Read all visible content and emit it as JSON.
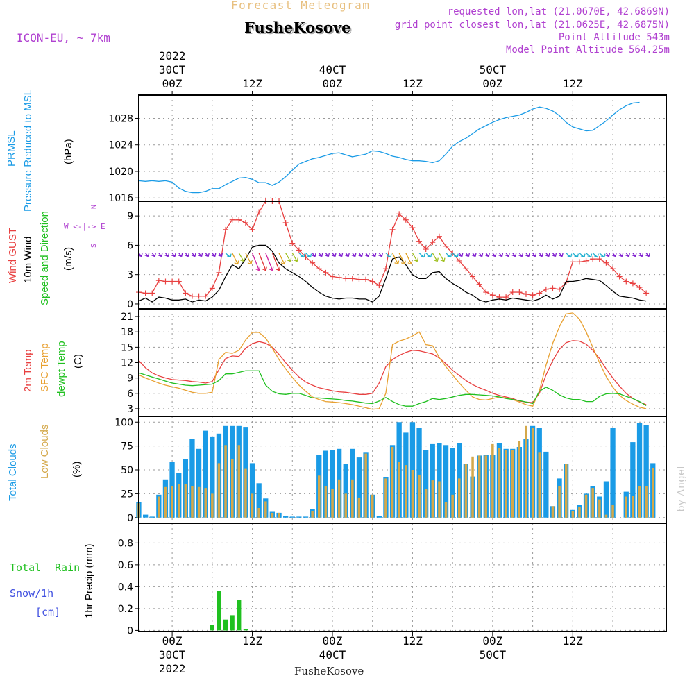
{
  "header": {
    "subtitle": "Forecast Meteogram",
    "title": "FusheKosove",
    "model": "ICON-EU, ~ 7km",
    "requested": "requested lon,lat (21.0670E, 42.6869N)",
    "closest": "grid point closest lon,lat (21.0625E, 42.6875N)",
    "point_alt": "Point Altitude 543m",
    "model_alt": "Model Point Altitude 564.25m",
    "footer": "FusheKosove",
    "watermark": "by Angel"
  },
  "time_axis": {
    "top_labels": [
      {
        "h": 0,
        "lines": [
          "2022",
          "30CT",
          "00Z"
        ]
      },
      {
        "h": 12,
        "lines": [
          "12Z"
        ]
      },
      {
        "h": 24,
        "lines": [
          "40CT",
          "00Z"
        ]
      },
      {
        "h": 36,
        "lines": [
          "12Z"
        ]
      },
      {
        "h": 48,
        "lines": [
          "50CT",
          "00Z"
        ]
      },
      {
        "h": 60,
        "lines": [
          "12Z"
        ]
      }
    ],
    "bottom_labels": [
      {
        "h": 0,
        "lines": [
          "00Z",
          "30CT",
          "2022"
        ]
      },
      {
        "h": 12,
        "lines": [
          "12Z"
        ]
      },
      {
        "h": 24,
        "lines": [
          "00Z",
          "40CT"
        ]
      },
      {
        "h": 36,
        "lines": [
          "12Z"
        ]
      },
      {
        "h": 48,
        "lines": [
          "00Z",
          "50CT"
        ]
      },
      {
        "h": 60,
        "lines": [
          "12Z"
        ]
      }
    ]
  },
  "panel_labels": {
    "p1": {
      "a": "PRMSL",
      "b": "Pressure Reduced to MSL",
      "unit": "(hPa)"
    },
    "p2": {
      "a": "Wind GUST",
      "b": "10m Wind",
      "c": "Speed and Direction",
      "unit": "(m/s)",
      "compass": [
        "N",
        "W <-|-> E",
        "S"
      ]
    },
    "p3": {
      "a": "2m Temp",
      "b": "SFC Temp",
      "c": "dewpt Temp",
      "unit": "(C)"
    },
    "p4": {
      "a": "Total Clouds",
      "b": "Low Clouds",
      "unit": "(%)"
    },
    "p5": {
      "a": "Total",
      "b": "Rain",
      "c": "Snow/1h",
      "d": "[cm]",
      "unit": "1hr Precip (mm)"
    }
  },
  "colors": {
    "pressure": "#1a9be6",
    "gust": "#e84040",
    "wind": "#000000",
    "t2m": "#e84040",
    "sfc": "#e8a030",
    "dew": "#20c020",
    "total_cloud": "#1a9be6",
    "low_cloud": "#d4a84a",
    "precip": "#20c020",
    "grid": "#999999",
    "arrows": [
      "#8020d0",
      "#2060e0",
      "#20b0d0",
      "#40c040",
      "#a0c020",
      "#e0a020",
      "#e03030",
      "#d020a0"
    ]
  },
  "chart_data": [
    {
      "type": "line",
      "title": "PRMSL Pressure Reduced to MSL",
      "ylabel": "(hPa)",
      "ylim": [
        1015.5,
        1031.5
      ],
      "yticks": [
        1016,
        1020,
        1024,
        1028
      ],
      "x_hours_from": -5,
      "xlim": [
        -5,
        74
      ],
      "series": [
        {
          "name": "PRMSL",
          "values": [
            1018.6,
            1018.5,
            1018.6,
            1018.5,
            1018.6,
            1018.4,
            1017.5,
            1017.0,
            1016.8,
            1016.8,
            1017.0,
            1017.4,
            1017.4,
            1018.0,
            1018.5,
            1019.0,
            1019.1,
            1018.8,
            1018.3,
            1018.3,
            1017.9,
            1018.4,
            1019.2,
            1020.2,
            1021.1,
            1021.5,
            1021.9,
            1022.1,
            1022.4,
            1022.7,
            1022.8,
            1022.5,
            1022.2,
            1022.4,
            1022.6,
            1023.1,
            1023.0,
            1022.7,
            1022.3,
            1022.1,
            1021.8,
            1021.6,
            1021.6,
            1021.5,
            1021.3,
            1021.6,
            1022.6,
            1023.8,
            1024.5,
            1025.0,
            1025.7,
            1026.4,
            1026.9,
            1027.4,
            1027.8,
            1028.1,
            1028.3,
            1028.5,
            1028.9,
            1029.4,
            1029.7,
            1029.5,
            1029.1,
            1028.4,
            1027.4,
            1026.7,
            1026.4,
            1026.1,
            1026.2,
            1026.9,
            1027.6,
            1028.5,
            1029.3,
            1029.9,
            1030.3,
            1030.4
          ]
        }
      ]
    },
    {
      "type": "line",
      "title": "Wind GUST / 10m Wind Speed and Direction",
      "ylabel": "(m/s)",
      "ylim": [
        -0.5,
        10.5
      ],
      "yticks": [
        0,
        3,
        6,
        9
      ],
      "x_hours_from": -5,
      "xlim": [
        -5,
        74
      ],
      "series": [
        {
          "name": "Wind GUST",
          "values": [
            1.2,
            1.1,
            1.1,
            2.4,
            2.3,
            2.3,
            2.3,
            1.1,
            0.8,
            0.8,
            0.8,
            1.6,
            3.2,
            7.6,
            8.6,
            8.6,
            8.3,
            7.6,
            9.4,
            10.5,
            10.5,
            10.5,
            8.3,
            6.2,
            5.5,
            4.8,
            4.2,
            3.6,
            3.2,
            2.8,
            2.7,
            2.6,
            2.6,
            2.5,
            2.5,
            2.3,
            1.9,
            3.6,
            7.6,
            9.2,
            8.6,
            7.8,
            6.4,
            5.6,
            6.3,
            6.9,
            5.9,
            5.2,
            4.4,
            3.6,
            2.8,
            2.0,
            1.2,
            0.9,
            0.7,
            0.7,
            1.2,
            1.2,
            1.0,
            0.9,
            1.1,
            1.5,
            1.6,
            1.5,
            2.2,
            4.3,
            4.3,
            4.4,
            4.6,
            4.6,
            4.2,
            3.6,
            2.8,
            2.3,
            2.1,
            1.7,
            1.1
          ]
        },
        {
          "name": "10m Wind",
          "values": [
            0.3,
            0.6,
            0.2,
            0.7,
            0.6,
            0.4,
            0.4,
            0.5,
            0.2,
            0.4,
            0.3,
            0.7,
            1.4,
            2.8,
            4.0,
            3.6,
            4.6,
            5.8,
            6.0,
            6.0,
            5.4,
            4.2,
            3.6,
            3.2,
            2.8,
            2.3,
            1.7,
            1.2,
            0.8,
            0.6,
            0.5,
            0.6,
            0.6,
            0.5,
            0.5,
            0.2,
            0.8,
            2.6,
            4.6,
            4.8,
            4.0,
            3.0,
            2.6,
            2.6,
            3.2,
            3.3,
            2.6,
            2.1,
            1.7,
            1.2,
            0.9,
            0.4,
            0.2,
            0.4,
            0.5,
            0.4,
            0.6,
            0.5,
            0.4,
            0.3,
            0.5,
            0.9,
            0.5,
            0.8,
            2.3,
            2.3,
            2.4,
            2.6,
            2.5,
            2.4,
            1.9,
            1.3,
            0.8,
            0.7,
            0.6,
            0.4,
            0.3
          ]
        }
      ]
    },
    {
      "type": "line",
      "title": "2m Temp / SFC Temp / dewpt Temp",
      "ylabel": "(C)",
      "ylim": [
        1.5,
        22.5
      ],
      "yticks": [
        3,
        6,
        9,
        12,
        15,
        18,
        21
      ],
      "x_hours_from": -5,
      "xlim": [
        -5,
        74
      ],
      "series": [
        {
          "name": "2m Temp",
          "values": [
            12.4,
            11.0,
            10.0,
            9.4,
            9.0,
            8.7,
            8.6,
            8.5,
            8.3,
            8.2,
            8.0,
            8.3,
            10.6,
            12.8,
            13.3,
            13.2,
            14.8,
            15.7,
            16.1,
            15.8,
            15.0,
            13.6,
            12.0,
            10.5,
            9.2,
            8.2,
            7.6,
            7.1,
            6.8,
            6.5,
            6.3,
            6.2,
            6.0,
            5.8,
            5.8,
            6.0,
            8.0,
            11.2,
            12.6,
            13.4,
            14.0,
            14.4,
            14.3,
            14.0,
            13.7,
            12.9,
            11.8,
            10.5,
            9.5,
            8.5,
            7.7,
            7.1,
            6.6,
            6.0,
            5.6,
            5.3,
            5.0,
            4.5,
            4.3,
            4.2,
            6.0,
            9.6,
            12.4,
            14.6,
            15.9,
            16.3,
            16.2,
            15.6,
            14.4,
            12.8,
            10.8,
            9.0,
            7.4,
            6.0,
            5.0,
            4.3,
            3.8
          ]
        },
        {
          "name": "SFC Temp",
          "values": [
            9.6,
            9.0,
            8.5,
            8.0,
            7.6,
            7.3,
            7.0,
            6.6,
            6.2,
            6.0,
            6.0,
            6.2,
            12.6,
            14.0,
            13.8,
            14.4,
            16.4,
            17.9,
            17.9,
            16.8,
            14.8,
            12.6,
            10.8,
            9.1,
            7.6,
            6.4,
            5.3,
            4.8,
            4.4,
            4.3,
            4.2,
            4.0,
            3.8,
            3.5,
            3.2,
            2.9,
            3.0,
            6.0,
            15.5,
            16.2,
            16.6,
            17.2,
            18.0,
            15.5,
            15.3,
            13.0,
            11.2,
            9.6,
            8.0,
            6.6,
            5.3,
            4.8,
            4.7,
            5.0,
            5.3,
            5.1,
            4.8,
            4.3,
            3.8,
            3.5,
            6.5,
            11.5,
            15.8,
            19.0,
            21.5,
            21.7,
            20.5,
            18.0,
            15.0,
            12.0,
            9.3,
            7.2,
            5.6,
            4.6,
            3.9,
            3.3,
            3.0
          ]
        },
        {
          "name": "dewpt Temp",
          "values": [
            10.0,
            9.6,
            9.2,
            8.8,
            8.4,
            8.0,
            7.8,
            7.6,
            7.5,
            7.6,
            7.7,
            7.8,
            8.5,
            9.8,
            9.8,
            10.1,
            10.4,
            10.4,
            10.4,
            7.6,
            6.4,
            5.9,
            5.8,
            6.0,
            6.0,
            5.6,
            5.1,
            5.1,
            5.0,
            4.9,
            4.8,
            4.6,
            4.5,
            4.3,
            4.1,
            4.0,
            4.5,
            5.2,
            4.4,
            3.8,
            3.5,
            3.5,
            4.0,
            4.4,
            5.0,
            4.8,
            5.0,
            5.3,
            5.6,
            5.8,
            5.8,
            5.7,
            5.6,
            5.5,
            5.3,
            5.0,
            4.8,
            4.6,
            4.3,
            4.0,
            6.4,
            7.2,
            6.6,
            5.7,
            5.1,
            4.8,
            4.8,
            4.4,
            4.4,
            5.4,
            5.9,
            6.0,
            5.9,
            5.4,
            5.0,
            4.4,
            3.6
          ]
        }
      ]
    },
    {
      "type": "bar",
      "title": "Total Clouds / Low Clouds",
      "ylabel": "(%)",
      "ylim": [
        -6,
        106
      ],
      "yticks": [
        0,
        25,
        50,
        75,
        100
      ],
      "x_hours_from": -5,
      "xlim": [
        -5,
        74
      ],
      "series": [
        {
          "name": "Total Clouds",
          "values": [
            16,
            3,
            1,
            24,
            40,
            58,
            47,
            61,
            82,
            72,
            91,
            85,
            88,
            96,
            96,
            96,
            95,
            57,
            36,
            20,
            6,
            5,
            2,
            1,
            1,
            1,
            9,
            66,
            70,
            71,
            72,
            56,
            72,
            63,
            68,
            24,
            2,
            42,
            76,
            100,
            89,
            100,
            94,
            71,
            77,
            78,
            76,
            73,
            78,
            56,
            43,
            65,
            66,
            66,
            78,
            72,
            72,
            74,
            82,
            96,
            94,
            69,
            12,
            41,
            56,
            8,
            13,
            25,
            33,
            22,
            38,
            94,
            0,
            27,
            79,
            99,
            97,
            57
          ]
        },
        {
          "name": "Low Clouds",
          "values": [
            15,
            0,
            0,
            22,
            32,
            33,
            35,
            35,
            33,
            32,
            31,
            25,
            57,
            76,
            61,
            76,
            51,
            25,
            10,
            17,
            5,
            5,
            0,
            0,
            0,
            0,
            7,
            44,
            33,
            30,
            40,
            25,
            40,
            21,
            67,
            24,
            0,
            41,
            74,
            58,
            55,
            50,
            45,
            30,
            39,
            38,
            16,
            24,
            41,
            56,
            64,
            65,
            65,
            77,
            73,
            71,
            71,
            80,
            96,
            94,
            68,
            0,
            12,
            33,
            56,
            7,
            11,
            24,
            31,
            19,
            3,
            13,
            0,
            22,
            23,
            33,
            33,
            52
          ]
        }
      ]
    },
    {
      "type": "bar",
      "title": "1hr Precip (mm)",
      "ylabel": "1hr Precip (mm)",
      "ylim": [
        -0.01,
        0.98
      ],
      "yticks": [
        0,
        0.2,
        0.4,
        0.6,
        0.8
      ],
      "x_hours_from": -5,
      "xlim": [
        -5,
        74
      ],
      "series": [
        {
          "name": "Total Rain",
          "values": [
            0,
            0,
            0,
            0,
            0,
            0,
            0,
            0,
            0,
            0,
            0,
            0.05,
            0.36,
            0.1,
            0.14,
            0.28,
            0.01,
            0,
            0,
            0,
            0,
            0,
            0,
            0,
            0,
            0,
            0,
            0,
            0,
            0,
            0,
            0,
            0,
            0,
            0,
            0,
            0,
            0,
            0,
            0,
            0,
            0,
            0,
            0,
            0,
            0,
            0,
            0,
            0,
            0,
            0,
            0,
            0,
            0,
            0,
            0,
            0,
            0,
            0,
            0,
            0,
            0,
            0,
            0,
            0,
            0,
            0,
            0,
            0,
            0,
            0,
            0,
            0,
            0,
            0,
            0,
            0
          ]
        }
      ]
    }
  ]
}
